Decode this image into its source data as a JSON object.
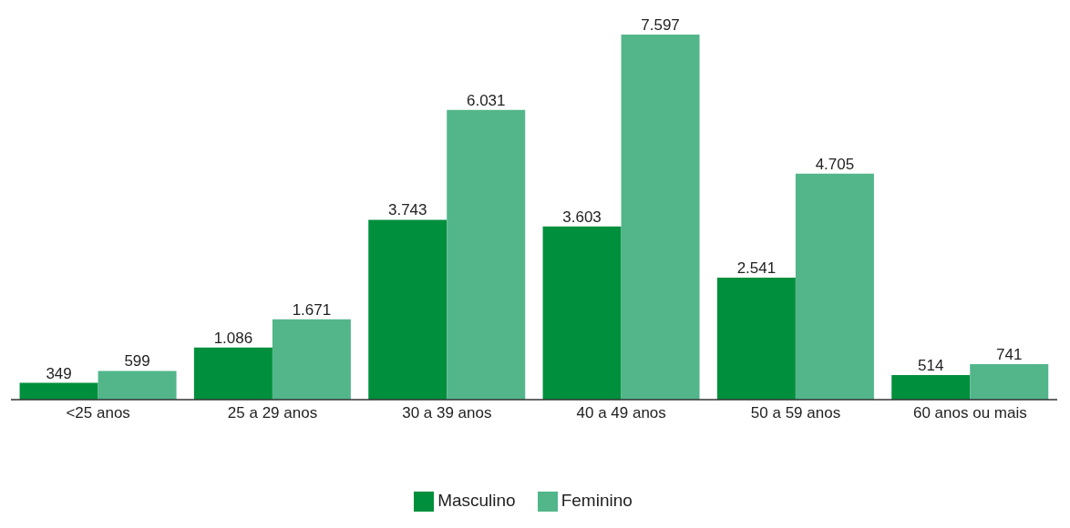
{
  "chart_data": {
    "type": "bar",
    "categories": [
      "<25 anos",
      "25 a 29 anos",
      "30 a 39 anos",
      "40 a 49 anos",
      "50 a 59 anos",
      "60 anos ou mais"
    ],
    "series": [
      {
        "name": "Masculino",
        "color": "#008f3c",
        "values": [
          349,
          1086,
          3743,
          3603,
          2541,
          514
        ],
        "value_labels": [
          "349",
          "1.086",
          "3.743",
          "3.603",
          "2.541",
          "514"
        ]
      },
      {
        "name": "Feminino",
        "color": "#52b68a",
        "values": [
          599,
          1671,
          6031,
          7597,
          4705,
          741
        ],
        "value_labels": [
          "599",
          "1.671",
          "6.031",
          "7.597",
          "4.705",
          "741"
        ]
      }
    ],
    "legend": "bottom",
    "grid": false
  }
}
